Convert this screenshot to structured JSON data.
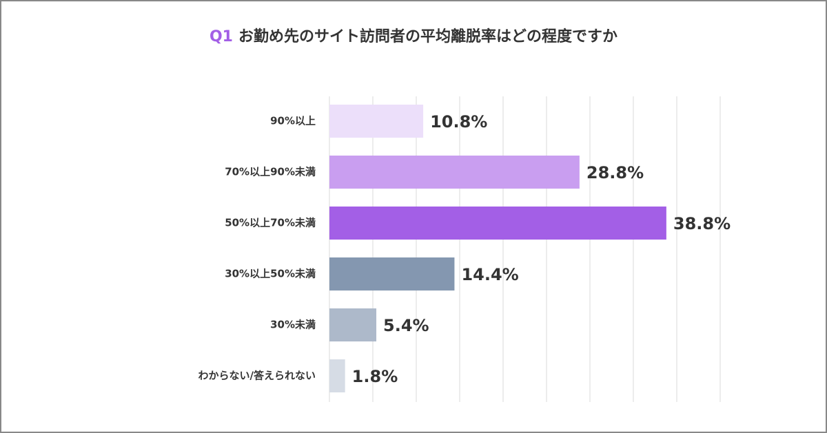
{
  "chart_data": {
    "type": "bar",
    "orientation": "horizontal",
    "title_prefix": "Q1",
    "title": "お勤め先のサイト訪問者の平均離脱率はどの程度ですか",
    "categories": [
      "90%以上",
      "70%以上90%未満",
      "50%以上70%未満",
      "30%以上50%未満",
      "30%未満",
      "わからない/答えられない"
    ],
    "values": [
      10.8,
      28.8,
      38.8,
      14.4,
      5.4,
      1.8
    ],
    "value_labels": [
      "10.8%",
      "28.8%",
      "38.8%",
      "14.4%",
      "5.4%",
      "1.8%"
    ],
    "colors": [
      "#ecdffa",
      "#c99ef0",
      "#a35fe6",
      "#8497b0",
      "#adb9ca",
      "#d6dce5"
    ],
    "xlim": [
      0,
      45
    ],
    "xticks": [
      0,
      5,
      10,
      15,
      20,
      25,
      30,
      35,
      40,
      45
    ],
    "grid": true
  }
}
